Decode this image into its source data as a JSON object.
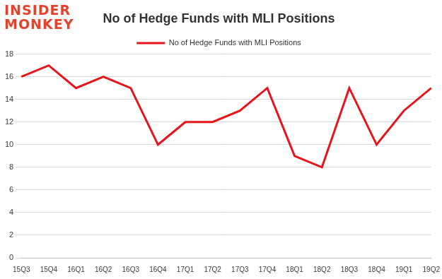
{
  "chart_data": {
    "type": "line",
    "title": "No of Hedge Funds with MLI Positions",
    "annotations": [
      "INSIDER",
      "MONKEY"
    ],
    "categories": [
      "15Q3",
      "15Q4",
      "16Q1",
      "16Q2",
      "16Q3",
      "16Q4",
      "17Q1",
      "17Q2",
      "17Q3",
      "17Q4",
      "18Q1",
      "18Q2",
      "18Q3",
      "18Q4",
      "19Q1",
      "19Q2"
    ],
    "series": [
      {
        "name": "No of Hedge Funds with MLI Positions",
        "color": "#e8141b",
        "values": [
          16,
          17,
          15,
          16,
          15,
          10,
          12,
          12,
          13,
          15,
          9,
          8,
          15,
          10,
          13,
          15
        ]
      }
    ],
    "ylim": [
      0,
      18
    ],
    "yticks": [
      0,
      2,
      4,
      6,
      8,
      10,
      12,
      14,
      16,
      18
    ],
    "grid": true,
    "legend": "top"
  }
}
